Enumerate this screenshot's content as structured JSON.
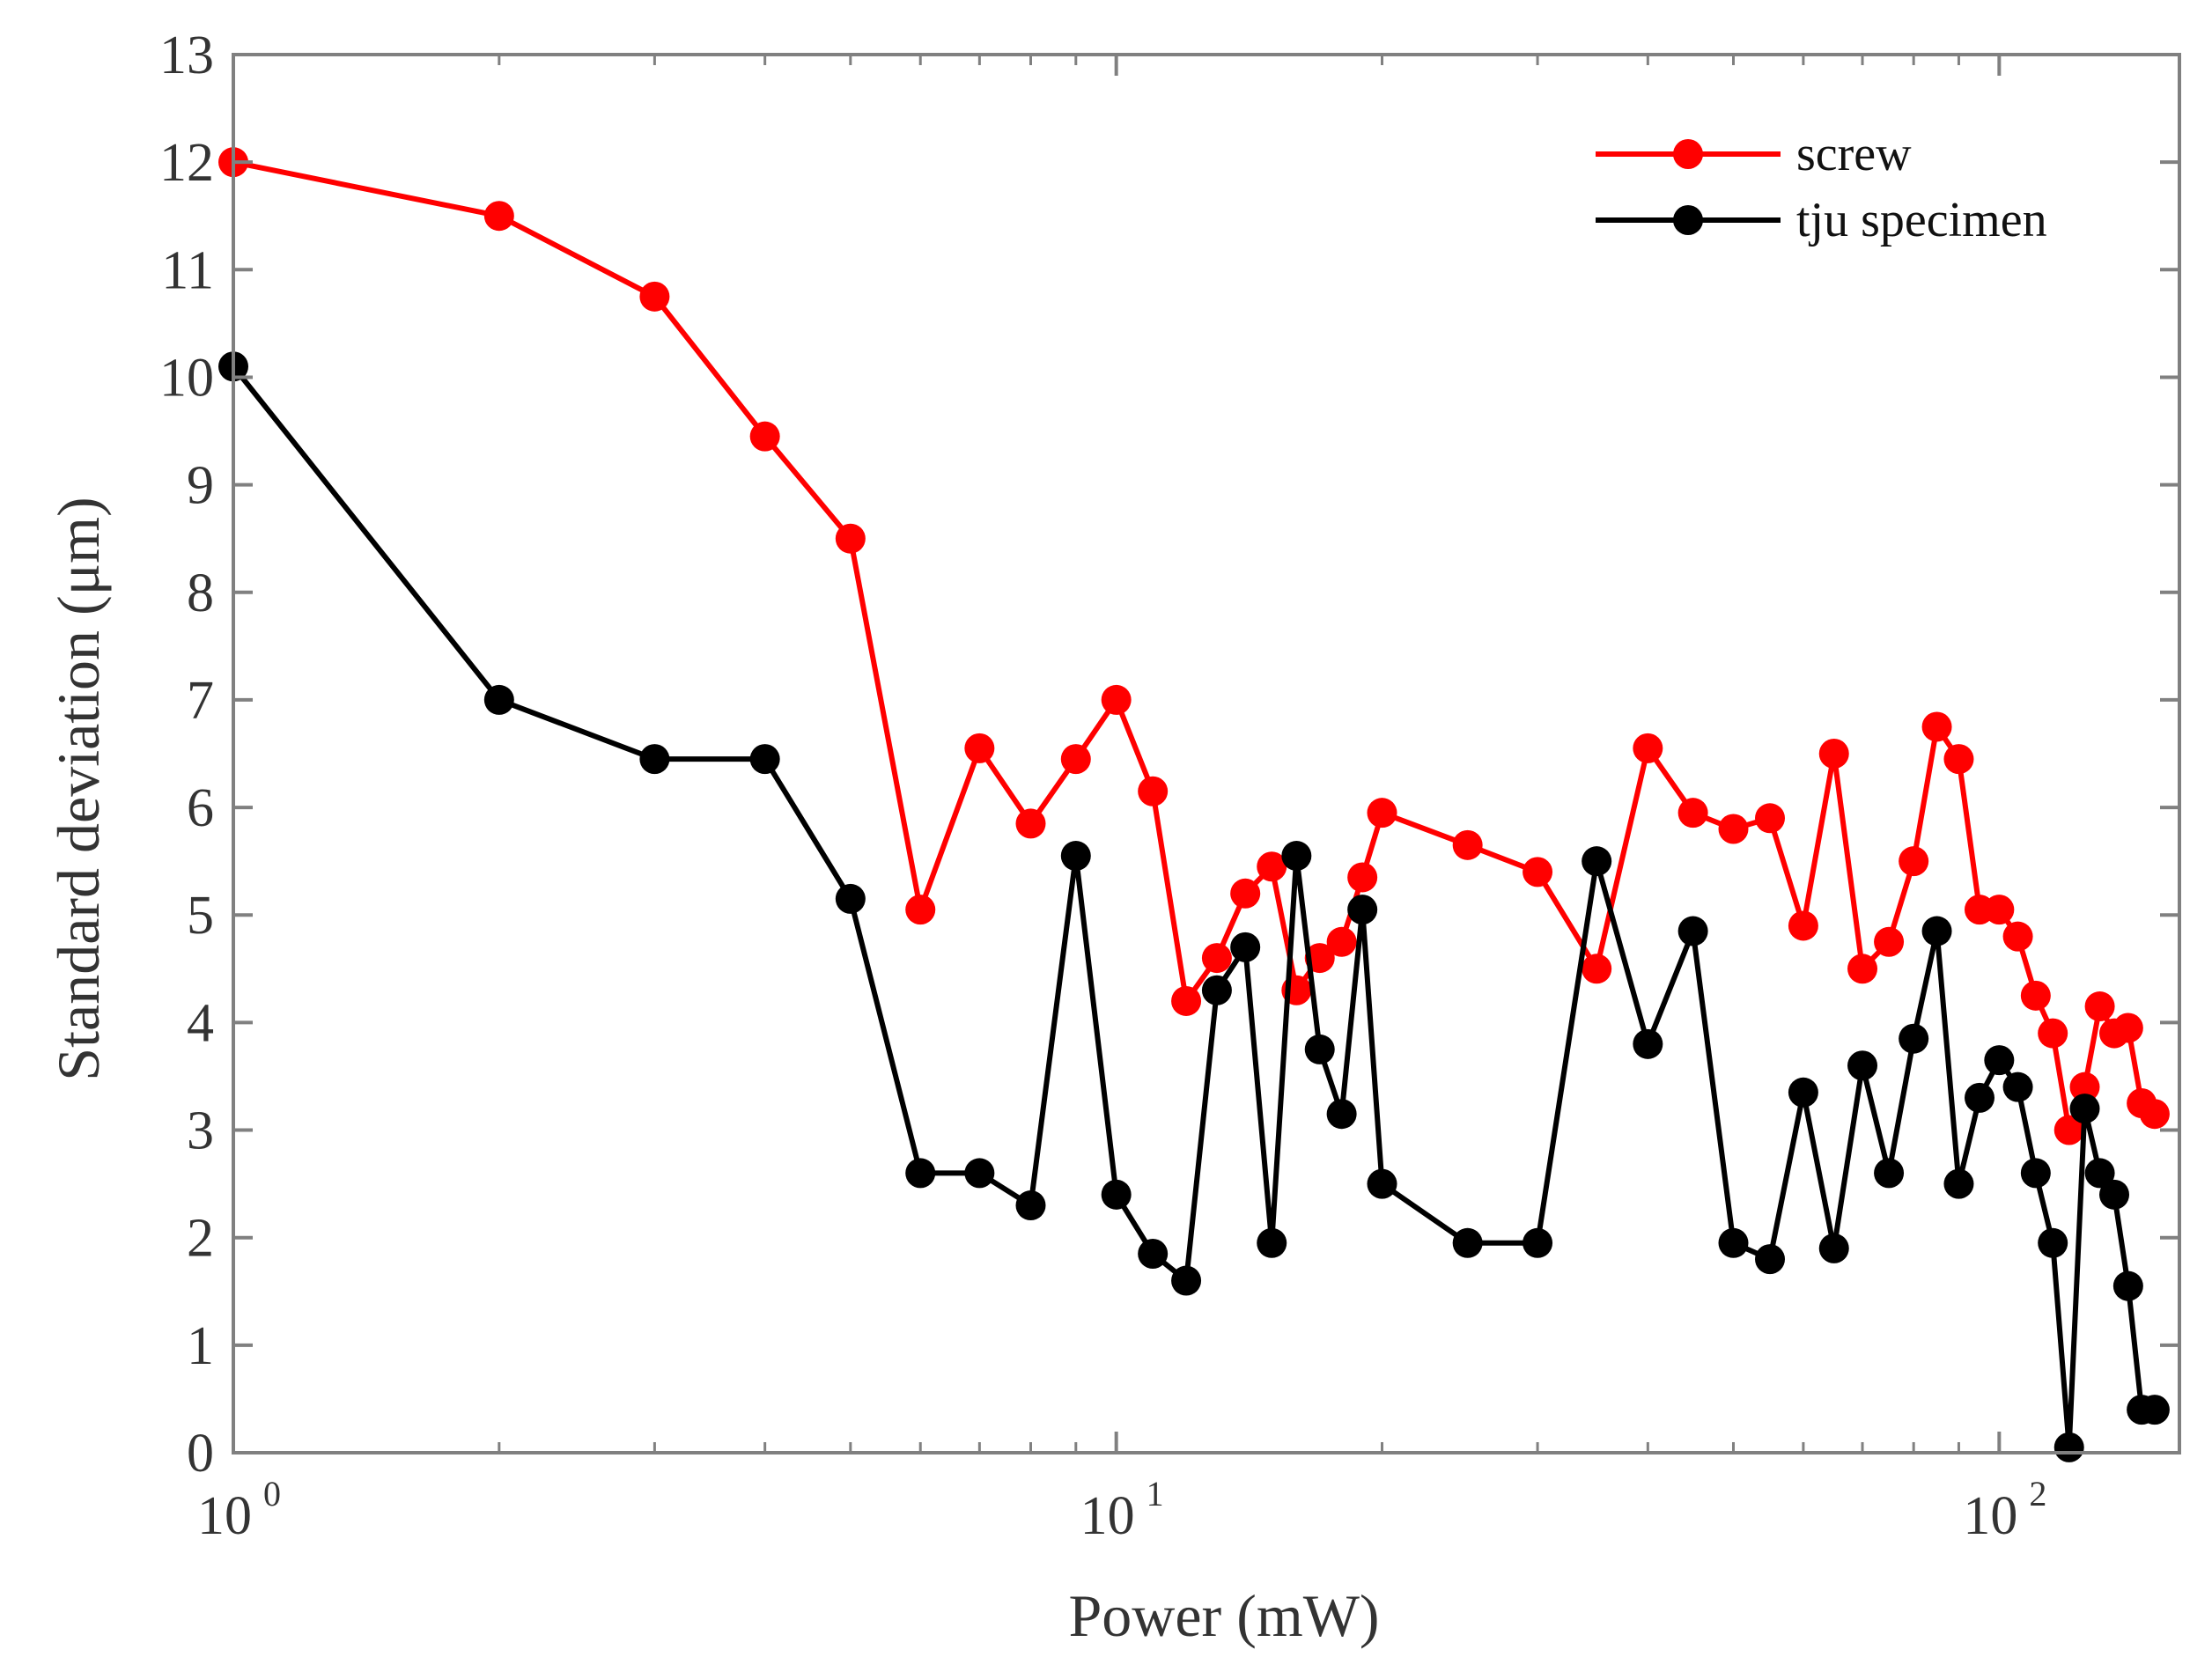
{
  "chart_data": {
    "type": "line",
    "x_scale": "log",
    "title": "",
    "xlabel": "Power (mW)",
    "ylabel": "Standard deviation (μm)",
    "xlim": [
      1,
      160
    ],
    "ylim": [
      0,
      13
    ],
    "x_ticks": [
      {
        "value": 1,
        "base": "10",
        "exp": "0"
      },
      {
        "value": 10,
        "base": "10",
        "exp": "1"
      },
      {
        "value": 100,
        "base": "10",
        "exp": "2"
      }
    ],
    "y_ticks": [
      "0",
      "1",
      "2",
      "3",
      "4",
      "5",
      "6",
      "7",
      "8",
      "9",
      "10",
      "11",
      "12",
      "13"
    ],
    "grid": false,
    "legend_position": "top-right",
    "series": [
      {
        "name": "screw",
        "color": "#ff0000",
        "x": [
          1,
          2,
          3,
          4,
          5,
          6,
          7,
          8,
          9,
          10,
          11,
          12,
          13,
          14,
          15,
          16,
          17,
          18,
          19,
          20,
          25,
          30,
          35,
          40,
          45,
          50,
          55,
          60,
          65,
          70,
          75,
          80,
          85,
          90,
          95,
          100,
          105,
          110,
          115,
          120,
          125,
          130,
          135,
          140,
          145,
          150
        ],
        "y": [
          12,
          11.5,
          10.75,
          9.45,
          8.5,
          5.05,
          6.55,
          5.85,
          6.45,
          7.0,
          6.15,
          4.2,
          4.6,
          5.2,
          5.45,
          4.3,
          4.6,
          4.75,
          5.35,
          5.95,
          5.65,
          5.4,
          4.5,
          6.55,
          5.95,
          5.8,
          5.9,
          4.9,
          6.5,
          4.5,
          4.75,
          5.5,
          6.75,
          6.45,
          5.05,
          5.05,
          4.8,
          4.25,
          3.9,
          3.0,
          3.4,
          4.15,
          3.9,
          3.95,
          3.25,
          3.15
        ]
      },
      {
        "name": "tju specimen",
        "color": "#000000",
        "x": [
          1,
          2,
          3,
          4,
          5,
          6,
          7,
          8,
          9,
          10,
          11,
          12,
          13,
          14,
          15,
          16,
          17,
          18,
          19,
          20,
          25,
          30,
          35,
          40,
          45,
          50,
          55,
          60,
          65,
          70,
          75,
          80,
          85,
          90,
          95,
          100,
          105,
          110,
          115,
          120,
          125,
          130,
          135,
          140,
          145,
          150
        ],
        "y": [
          10.1,
          7.0,
          6.45,
          6.45,
          5.15,
          2.6,
          2.6,
          2.3,
          5.55,
          2.4,
          1.85,
          1.6,
          4.3,
          4.7,
          1.95,
          5.55,
          3.75,
          3.15,
          5.05,
          2.5,
          1.95,
          1.95,
          5.5,
          3.8,
          4.85,
          1.95,
          1.8,
          3.35,
          1.9,
          3.6,
          2.6,
          3.85,
          4.85,
          2.5,
          3.3,
          3.65,
          3.4,
          2.6,
          1.95,
          0.05,
          3.2,
          2.6,
          2.4,
          1.55,
          0.4,
          0.4
        ]
      }
    ]
  }
}
